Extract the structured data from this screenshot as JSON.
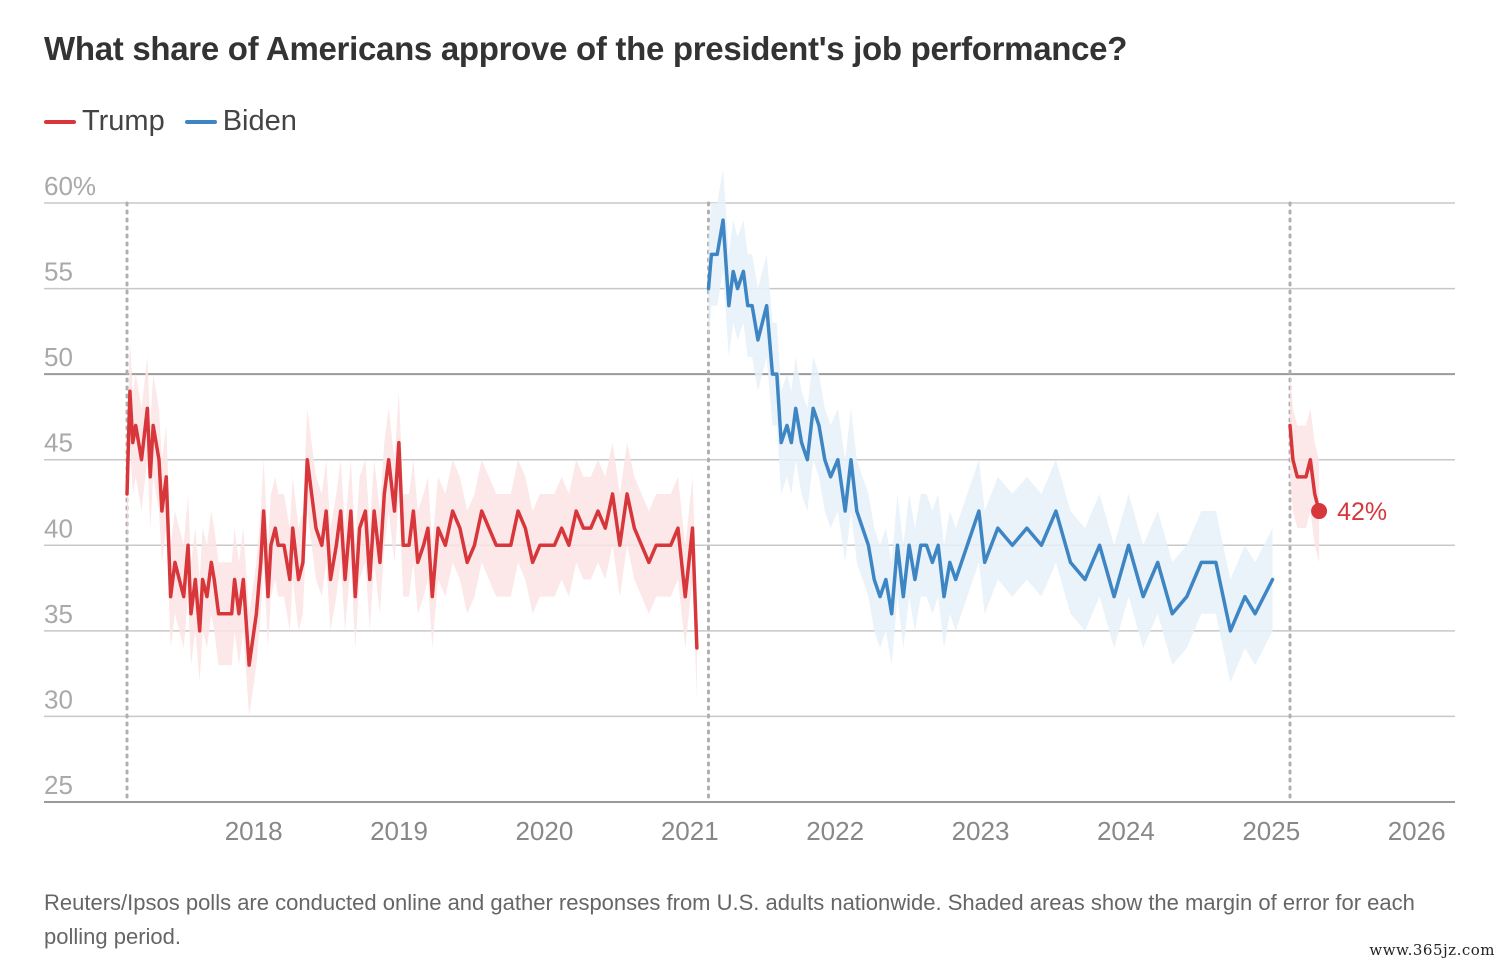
{
  "title": "What share of Americans approve of the president's job performance?",
  "footnote": "Reuters/Ipsos polls are conducted online and gather responses from U.S. adults nationwide. Shaded areas show the margin of error for each polling period.",
  "watermark": "www.365jz.com",
  "colors": {
    "trump": "#d7373b",
    "biden": "#3e86c3",
    "trump_band": "#fbe4e4",
    "biden_band": "#e6f0f9",
    "grid": "#bdbdbd",
    "tick": "#999999"
  },
  "chart_data": {
    "type": "line",
    "title": "What share of Americans approve of the president's job performance?",
    "xlabel": "",
    "ylabel": "",
    "xlim": [
      2017.0,
      2026.0
    ],
    "ylim": [
      25,
      60
    ],
    "y_ticks": [
      {
        "value": 60,
        "label": "60%"
      },
      {
        "value": 55,
        "label": "55"
      },
      {
        "value": 50,
        "label": "50"
      },
      {
        "value": 45,
        "label": "45"
      },
      {
        "value": 40,
        "label": "40"
      },
      {
        "value": 35,
        "label": "35"
      },
      {
        "value": 30,
        "label": "30"
      },
      {
        "value": 25,
        "label": "25"
      }
    ],
    "x_ticks": [
      {
        "value": 2018,
        "label": "2018"
      },
      {
        "value": 2019,
        "label": "2019"
      },
      {
        "value": 2020,
        "label": "2020"
      },
      {
        "value": 2021,
        "label": "2021"
      },
      {
        "value": 2022,
        "label": "2022"
      },
      {
        "value": 2023,
        "label": "2023"
      },
      {
        "value": 2024,
        "label": "2024"
      },
      {
        "value": 2025,
        "label": "2025"
      },
      {
        "value": 2026,
        "label": "2026"
      }
    ],
    "reference_lines": [
      {
        "axis": "x",
        "value": 2017.06,
        "style": "dotted"
      },
      {
        "axis": "x",
        "value": 2021.06,
        "style": "dotted"
      },
      {
        "axis": "x",
        "value": 2025.06,
        "style": "dotted"
      },
      {
        "axis": "y",
        "value": 50,
        "style": "solid-emphasis"
      }
    ],
    "legend_position": "top-left",
    "grid": true,
    "annotation": {
      "text": "42%",
      "series": "Trump (2025)",
      "x": 2025.26,
      "y": 42
    },
    "series": [
      {
        "name": "Trump",
        "legend": true,
        "color_key": "trump",
        "band_key": "trump_band",
        "margin": 3,
        "x": [
          2017.06,
          2017.08,
          2017.1,
          2017.12,
          2017.16,
          2017.2,
          2017.22,
          2017.24,
          2017.28,
          2017.3,
          2017.33,
          2017.36,
          2017.39,
          2017.42,
          2017.45,
          2017.48,
          2017.5,
          2017.53,
          2017.56,
          2017.58,
          2017.61,
          2017.64,
          2017.66,
          2017.69,
          2017.72,
          2017.75,
          2017.78,
          2017.8,
          2017.83,
          2017.86,
          2017.9,
          2017.95,
          2017.98,
          2018.0,
          2018.03,
          2018.05,
          2018.08,
          2018.1,
          2018.14,
          2018.18,
          2018.2,
          2018.24,
          2018.27,
          2018.3,
          2018.33,
          2018.36,
          2018.4,
          2018.43,
          2018.46,
          2018.5,
          2018.53,
          2018.56,
          2018.6,
          2018.63,
          2018.66,
          2018.7,
          2018.73,
          2018.76,
          2018.8,
          2018.83,
          2018.86,
          2018.9,
          2018.93,
          2018.96,
          2019.0,
          2019.03,
          2019.06,
          2019.1,
          2019.13,
          2019.16,
          2019.2,
          2019.25,
          2019.3,
          2019.35,
          2019.4,
          2019.45,
          2019.5,
          2019.55,
          2019.6,
          2019.65,
          2019.7,
          2019.75,
          2019.8,
          2019.85,
          2019.9,
          2019.95,
          2020.0,
          2020.05,
          2020.1,
          2020.15,
          2020.2,
          2020.25,
          2020.3,
          2020.35,
          2020.4,
          2020.45,
          2020.5,
          2020.55,
          2020.6,
          2020.65,
          2020.7,
          2020.75,
          2020.8,
          2020.85,
          2020.9,
          2020.95,
          2020.98
        ],
        "y": [
          43,
          49,
          46,
          47,
          45,
          48,
          44,
          47,
          45,
          42,
          44,
          37,
          39,
          38,
          37,
          40,
          36,
          38,
          35,
          38,
          37,
          39,
          38,
          36,
          36,
          36,
          36,
          38,
          36,
          38,
          33,
          36,
          39,
          42,
          37,
          40,
          41,
          40,
          40,
          38,
          41,
          38,
          39,
          45,
          43,
          41,
          40,
          42,
          38,
          40,
          42,
          38,
          42,
          37,
          41,
          42,
          38,
          42,
          39,
          43,
          45,
          42,
          46,
          40,
          40,
          42,
          39,
          40,
          41,
          37,
          41,
          40,
          42,
          41,
          39,
          40,
          42,
          41,
          40,
          40,
          40,
          42,
          41,
          39,
          40,
          40,
          40,
          41,
          40,
          42,
          41,
          41,
          42,
          41,
          43,
          40,
          43,
          41,
          40,
          39,
          40,
          40,
          40,
          41,
          37,
          41,
          34
        ]
      },
      {
        "name": "Biden",
        "legend": true,
        "color_key": "biden",
        "band_key": "biden_band",
        "margin": 3,
        "x": [
          2021.06,
          2021.08,
          2021.12,
          2021.16,
          2021.2,
          2021.23,
          2021.26,
          2021.3,
          2021.33,
          2021.36,
          2021.4,
          2021.43,
          2021.46,
          2021.5,
          2021.53,
          2021.56,
          2021.6,
          2021.63,
          2021.66,
          2021.7,
          2021.74,
          2021.78,
          2021.82,
          2021.86,
          2021.9,
          2021.95,
          2022.0,
          2022.04,
          2022.08,
          2022.12,
          2022.16,
          2022.2,
          2022.24,
          2022.28,
          2022.32,
          2022.36,
          2022.4,
          2022.44,
          2022.48,
          2022.52,
          2022.56,
          2022.6,
          2022.64,
          2022.68,
          2022.72,
          2022.76,
          2022.8,
          2022.84,
          2022.88,
          2022.92,
          2022.96,
          2023.05,
          2023.15,
          2023.25,
          2023.35,
          2023.45,
          2023.55,
          2023.65,
          2023.75,
          2023.85,
          2023.95,
          2024.05,
          2024.15,
          2024.25,
          2024.35,
          2024.45,
          2024.55,
          2024.65,
          2024.75,
          2024.82,
          2024.88,
          2024.94
        ],
        "y": [
          55,
          57,
          57,
          59,
          54,
          56,
          55,
          56,
          54,
          54,
          52,
          53,
          54,
          50,
          50,
          46,
          47,
          46,
          48,
          46,
          45,
          48,
          47,
          45,
          44,
          45,
          42,
          45,
          42,
          41,
          40,
          38,
          37,
          38,
          36,
          40,
          37,
          40,
          38,
          40,
          40,
          39,
          40,
          37,
          39,
          38,
          39,
          40,
          41,
          42,
          39,
          41,
          40,
          41,
          40,
          42,
          39,
          38,
          40,
          37,
          40,
          37,
          39,
          36,
          37,
          39,
          39,
          35,
          37,
          36,
          37,
          38
        ]
      },
      {
        "name": "Trump (2025)",
        "legend": false,
        "color_key": "trump",
        "band_key": "trump_band",
        "margin": 3,
        "x": [
          2025.06,
          2025.08,
          2025.11,
          2025.14,
          2025.17,
          2025.2,
          2025.23,
          2025.26
        ],
        "y": [
          47,
          45,
          44,
          44,
          44,
          45,
          43,
          42
        ]
      }
    ]
  }
}
